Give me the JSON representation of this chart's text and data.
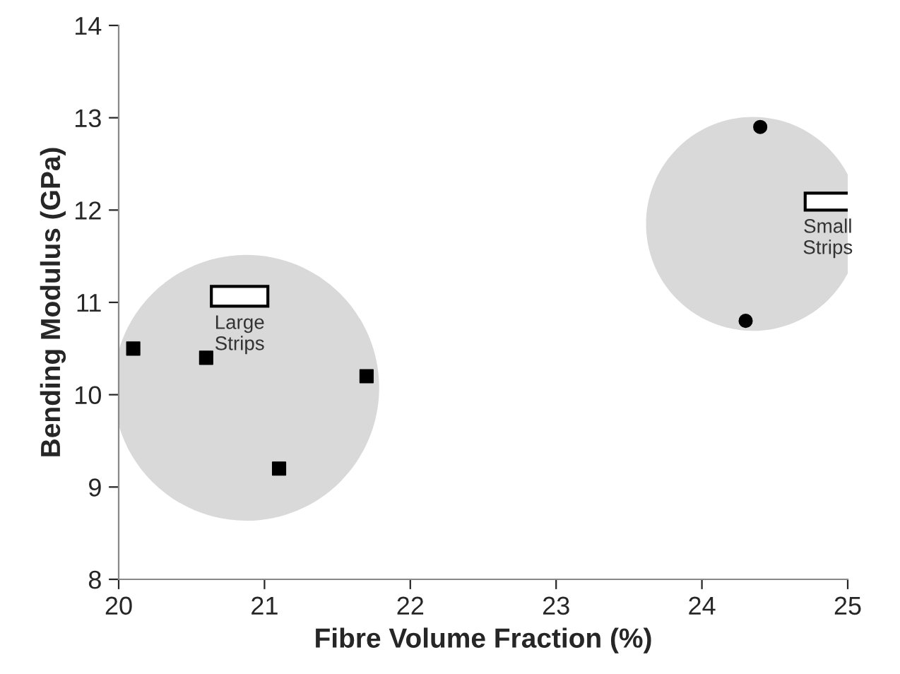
{
  "chart_data": {
    "type": "scatter",
    "xlabel": "Fibre Volume Fraction (%)",
    "ylabel": "Bending Modulus (GPa)",
    "series": [
      {
        "x": [
          20.1,
          20.6,
          21.1,
          21.7
        ],
        "values": [
          10.5,
          10.4,
          9.2,
          10.2
        ],
        "color": "#000000",
        "marker": "square"
      },
      {
        "x": [
          24.3,
          24.4
        ],
        "values": [
          10.8,
          12.9
        ],
        "color": "#000000",
        "marker": "circle"
      }
    ],
    "annotations": [
      "Large\nStrips",
      "Small\nStrips"
    ],
    "xlim": [
      20,
      25
    ],
    "xticks": [
      20,
      21,
      22,
      23,
      24,
      25
    ],
    "ylim": [
      8,
      14
    ],
    "yticks": [
      8,
      9,
      10,
      11,
      12,
      13,
      14
    ],
    "grid": false,
    "legend": false
  }
}
